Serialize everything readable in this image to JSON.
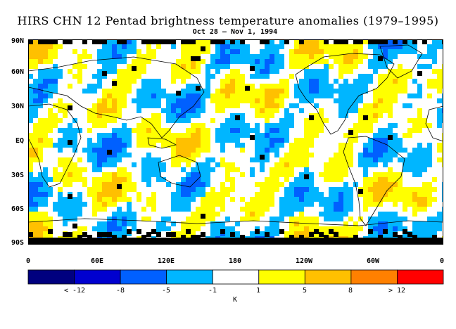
{
  "title": "HIRS CHN 12 Pentad brightness temperature anomalies (1979–1995)",
  "subtitle": "Oct 28 – Nov 1, 1994",
  "lat_labels": [
    "90N",
    "60N",
    "30N",
    "EQ",
    "30S",
    "60S",
    "90S"
  ],
  "lon_labels": [
    "0",
    "60E",
    "120E",
    "180",
    "120W",
    "60W",
    "0"
  ],
  "colorbar": {
    "colors": [
      "#00007f",
      "#0000cf",
      "#0060ff",
      "#00b6ff",
      "#ffffff",
      "#ffff00",
      "#ffc000",
      "#ff8000",
      "#ff0000"
    ],
    "ticks": [
      "< -12",
      "-8",
      "-5",
      "-1",
      "1",
      "5",
      "8",
      "> 12"
    ],
    "unit": "K"
  }
}
